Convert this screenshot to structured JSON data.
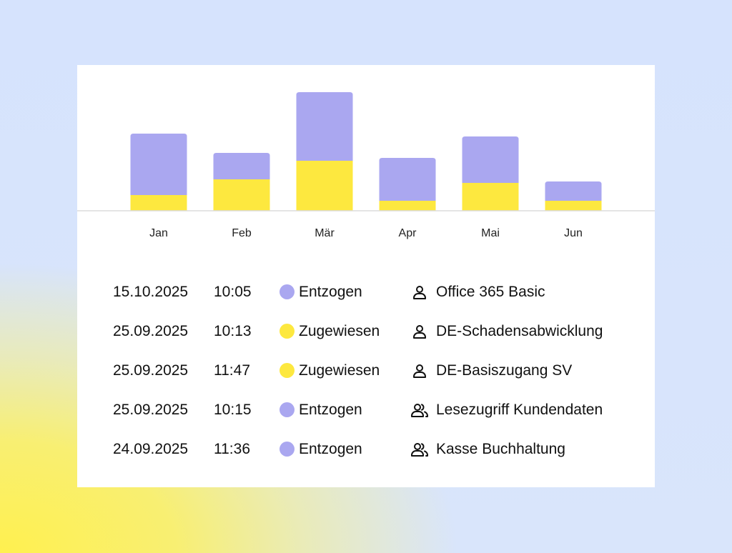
{
  "colors": {
    "revoked": "#aaa7f0",
    "assigned": "#fde83f",
    "baseline": "#dcdcdc"
  },
  "chart_data": {
    "type": "bar",
    "stacked": true,
    "categories": [
      "Jan",
      "Feb",
      "Mär",
      "Apr",
      "Mai",
      "Jun"
    ],
    "series": [
      {
        "color": "#fde83f",
        "values": [
          22,
          44,
          70,
          14,
          39,
          14
        ]
      },
      {
        "color": "#aaa7f0",
        "values": [
          86,
          37,
          96,
          60,
          65,
          27
        ]
      }
    ],
    "ylim": [
      0,
      170
    ],
    "grid": false
  },
  "rows": [
    {
      "date": "15.10.2025",
      "time": "10:05",
      "status": "Entzogen",
      "status_color": "#aaa7f0",
      "icon": "user-icon",
      "name": "Office 365 Basic"
    },
    {
      "date": "25.09.2025",
      "time": "10:13",
      "status": "Zugewiesen",
      "status_color": "#fde83f",
      "icon": "user-icon",
      "name": "DE-Schadensabwicklung"
    },
    {
      "date": "25.09.2025",
      "time": "11:47",
      "status": "Zugewiesen",
      "status_color": "#fde83f",
      "icon": "user-icon",
      "name": "DE-Basiszugang SV"
    },
    {
      "date": "25.09.2025",
      "time": "10:15",
      "status": "Entzogen",
      "status_color": "#aaa7f0",
      "icon": "users-icon",
      "name": "Lesezugriff Kundendaten"
    },
    {
      "date": "24.09.2025",
      "time": "11:36",
      "status": "Entzogen",
      "status_color": "#aaa7f0",
      "icon": "users-icon",
      "name": "Kasse Buchhaltung"
    }
  ]
}
